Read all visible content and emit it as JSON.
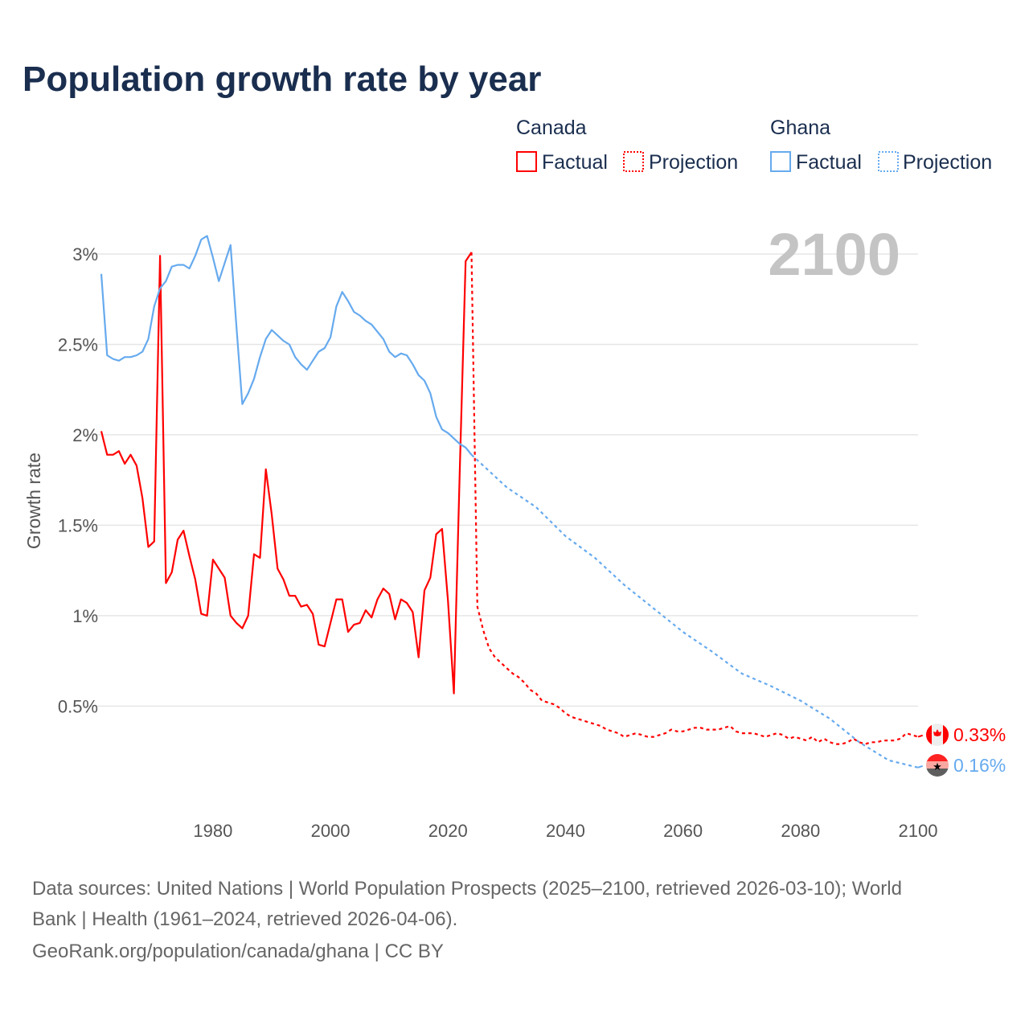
{
  "chart_data": {
    "type": "line",
    "title": "Population growth rate by year",
    "ylabel": "Growth rate",
    "xlabel": "",
    "xlim": [
      1961,
      2100
    ],
    "ylim": [
      0,
      3
    ],
    "x_ticks": [
      "1980",
      "2000",
      "2020",
      "2040",
      "2060",
      "2080",
      "2100"
    ],
    "x_tick_values": [
      1980,
      2000,
      2020,
      2040,
      2060,
      2080,
      2100
    ],
    "y_ticks": [
      "0.5%",
      "1%",
      "1.5%",
      "2%",
      "2.5%",
      "3%"
    ],
    "y_tick_values": [
      0.5,
      1,
      1.5,
      2,
      2.5,
      3
    ],
    "grid": true,
    "current_year_label": "2100",
    "legend": {
      "placement": "top-right",
      "groups": [
        {
          "name": "Canada",
          "items": [
            "Factual",
            "Projection"
          ],
          "color": "#ff0000"
        },
        {
          "name": "Ghana",
          "items": [
            "Factual",
            "Projection"
          ],
          "color": "#66aaee"
        }
      ]
    },
    "series": [
      {
        "name": "Canada Factual",
        "country": "Canada",
        "kind": "factual",
        "color": "#ff0000",
        "start_year": 1961,
        "step": 1,
        "values": [
          2.02,
          1.89,
          1.89,
          1.91,
          1.84,
          1.89,
          1.83,
          1.65,
          1.38,
          1.41,
          2.99,
          1.18,
          1.24,
          1.42,
          1.47,
          1.33,
          1.2,
          1.01,
          1.0,
          1.31,
          1.26,
          1.21,
          1.0,
          0.96,
          0.93,
          1.0,
          1.34,
          1.32,
          1.81,
          1.56,
          1.26,
          1.2,
          1.11,
          1.11,
          1.05,
          1.06,
          1.01,
          0.84,
          0.83,
          0.96,
          1.09,
          1.09,
          0.91,
          0.95,
          0.96,
          1.03,
          0.99,
          1.09,
          1.15,
          1.12,
          0.98,
          1.09,
          1.07,
          1.02,
          0.77,
          1.14,
          1.21,
          1.45,
          1.48,
          1.08,
          0.57,
          1.8,
          2.96,
          3.01
        ]
      },
      {
        "name": "Canada Projection",
        "country": "Canada",
        "kind": "projection",
        "color": "#ff0000",
        "start_year": 2025,
        "step": 1,
        "values": [
          1.05,
          0.92,
          0.82,
          0.77,
          0.74,
          0.71,
          0.68,
          0.66,
          0.63,
          0.59,
          0.57,
          0.53,
          0.52,
          0.51,
          0.49,
          0.46,
          0.44,
          0.43,
          0.42,
          0.41,
          0.4,
          0.39,
          0.37,
          0.36,
          0.35,
          0.33,
          0.34,
          0.35,
          0.34,
          0.33,
          0.33,
          0.34,
          0.35,
          0.37,
          0.36,
          0.36,
          0.37,
          0.38,
          0.38,
          0.37,
          0.37,
          0.37,
          0.38,
          0.39,
          0.36,
          0.35,
          0.35,
          0.35,
          0.34,
          0.33,
          0.34,
          0.35,
          0.34,
          0.32,
          0.33,
          0.32,
          0.31,
          0.33,
          0.3,
          0.32,
          0.3,
          0.29,
          0.29,
          0.3,
          0.32,
          0.3,
          0.29,
          0.3,
          0.3,
          0.31,
          0.31,
          0.31,
          0.32,
          0.35,
          0.34,
          0.33
        ]
      },
      {
        "name": "Ghana Factual",
        "country": "Ghana",
        "kind": "factual",
        "color": "#66aaee",
        "start_year": 1961,
        "step": 1,
        "values": [
          2.89,
          2.44,
          2.42,
          2.41,
          2.43,
          2.43,
          2.44,
          2.46,
          2.53,
          2.71,
          2.81,
          2.85,
          2.93,
          2.94,
          2.94,
          2.92,
          2.99,
          3.08,
          3.1,
          2.98,
          2.85,
          2.95,
          3.05,
          2.6,
          2.17,
          2.23,
          2.31,
          2.43,
          2.53,
          2.58,
          2.55,
          2.52,
          2.5,
          2.43,
          2.39,
          2.36,
          2.41,
          2.46,
          2.48,
          2.54,
          2.71,
          2.79,
          2.74,
          2.68,
          2.66,
          2.63,
          2.61,
          2.57,
          2.53,
          2.46,
          2.43,
          2.45,
          2.44,
          2.39,
          2.33,
          2.3,
          2.23,
          2.1,
          2.03,
          2.01,
          1.98,
          1.95,
          1.93,
          1.89
        ]
      },
      {
        "name": "Ghana Projection",
        "country": "Ghana",
        "kind": "projection",
        "color": "#66aaee",
        "start_year": 2025,
        "step": 5,
        "values": [
          1.86,
          1.71,
          1.6,
          1.44,
          1.32,
          1.17,
          1.04,
          0.91,
          0.8,
          0.68,
          0.61,
          0.53,
          0.43,
          0.3,
          0.2,
          0.16
        ]
      }
    ],
    "end_labels": [
      {
        "country": "Canada",
        "value": "0.33%",
        "color": "#ff0000",
        "flag": "canada-flag"
      },
      {
        "country": "Ghana",
        "value": "0.16%",
        "color": "#66aaee",
        "flag": "ghana-flag"
      }
    ]
  },
  "footer": {
    "sources_line1": "Data sources: United Nations | World Population Prospects (2025–2100, retrieved 2026-03-10); World",
    "sources_line2": "Bank | Health (1961–2024, retrieved 2026-04-06).",
    "credit": "GeoRank.org/population/canada/ghana | CC BY"
  }
}
